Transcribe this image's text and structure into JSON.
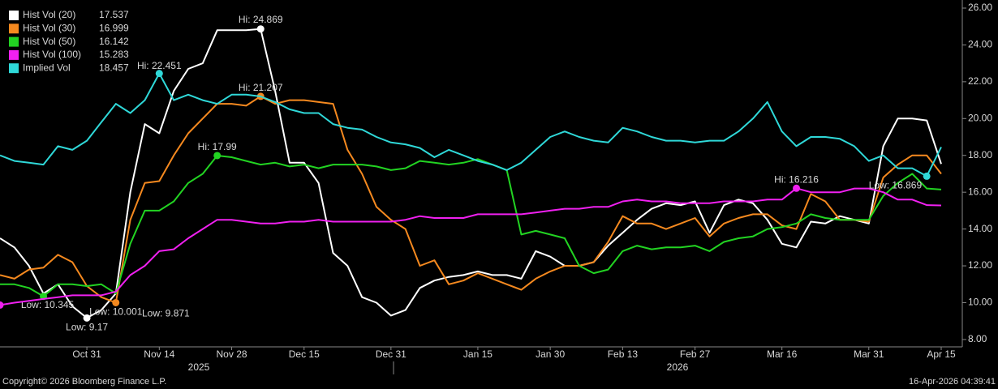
{
  "chart_data": {
    "type": "line",
    "categories": [
      null,
      null,
      null,
      null,
      null,
      null,
      "Oct 31",
      null,
      null,
      null,
      null,
      "Nov 14",
      null,
      null,
      null,
      null,
      "Nov 28",
      null,
      null,
      null,
      null,
      "Dec 15",
      null,
      null,
      null,
      null,
      null,
      "Dec 31",
      null,
      null,
      null,
      null,
      null,
      "Jan 15",
      null,
      null,
      null,
      null,
      "Jan 30",
      null,
      null,
      null,
      null,
      "Feb 13",
      null,
      null,
      null,
      null,
      "Feb 27",
      null,
      null,
      null,
      null,
      null,
      "Mar 16",
      null,
      null,
      null,
      null,
      null,
      "Mar 31",
      null,
      null,
      null,
      null,
      "Apr 15"
    ],
    "year_labels": [
      "2025",
      "2026"
    ],
    "ylim": [
      7.6,
      26.44
    ],
    "yticks": [
      {
        "value": 8,
        "label": "8.00"
      },
      {
        "value": 10,
        "label": "10.00"
      },
      {
        "value": 12,
        "label": "12.00"
      },
      {
        "value": 14,
        "label": "14.00"
      },
      {
        "value": 16,
        "label": "16.00"
      },
      {
        "value": 18,
        "label": "18.00"
      },
      {
        "value": 20,
        "label": "20.00"
      },
      {
        "value": 22,
        "label": "22.00"
      },
      {
        "value": 24,
        "label": "24.00"
      },
      {
        "value": 26,
        "label": "26.00"
      }
    ],
    "legend": "top-left",
    "series": [
      {
        "name": "Hist Vol (20)",
        "color": "#ffffff",
        "values": [
          13.5,
          13.0,
          12.0,
          10.5,
          11.0,
          9.8,
          9.17,
          9.6,
          10.5,
          16.0,
          19.7,
          19.2,
          21.5,
          22.7,
          23.0,
          24.8,
          24.8,
          24.8,
          24.869,
          21.5,
          17.6,
          17.6,
          16.5,
          12.7,
          12.0,
          10.3,
          10.0,
          9.3,
          9.6,
          10.8,
          11.2,
          11.4,
          11.5,
          11.7,
          11.5,
          11.5,
          11.3,
          12.8,
          12.5,
          12.0,
          12.0,
          12.2,
          13.1,
          13.8,
          14.5,
          15.1,
          15.4,
          15.3,
          15.5,
          13.8,
          15.3,
          15.6,
          15.4,
          14.5,
          13.2,
          13.0,
          14.4,
          14.3,
          14.7,
          14.5,
          14.3,
          18.5,
          20.0,
          20.0,
          19.9,
          17.537
        ],
        "annotations": [
          {
            "label": "Hi: 24.869",
            "extreme": "max"
          },
          {
            "label": "Low: 9.17",
            "extreme": "min"
          }
        ]
      },
      {
        "name": "Hist Vol (30)",
        "color": "#f5891f",
        "values": [
          11.5,
          11.3,
          11.8,
          11.9,
          12.6,
          12.2,
          10.9,
          10.3,
          10.001,
          14.5,
          16.5,
          16.6,
          18.0,
          19.2,
          20.0,
          20.8,
          20.8,
          20.7,
          21.207,
          20.8,
          21.0,
          21.0,
          20.9,
          20.8,
          18.3,
          17.0,
          15.2,
          14.5,
          14.0,
          12.0,
          12.3,
          11.0,
          11.2,
          11.6,
          11.3,
          11.0,
          10.7,
          11.3,
          11.7,
          12.0,
          12.0,
          12.2,
          13.3,
          14.7,
          14.3,
          14.3,
          14.0,
          14.3,
          14.6,
          13.6,
          14.3,
          14.6,
          14.8,
          14.8,
          14.2,
          14.0,
          15.9,
          15.5,
          14.5,
          14.5,
          14.4,
          16.8,
          17.5,
          18.0,
          18.0,
          16.999
        ],
        "annotations": [
          {
            "label": "Hi: 21.207",
            "extreme": "max"
          },
          {
            "label": "Low: 10.001",
            "extreme": "min"
          }
        ]
      },
      {
        "name": "Hist Vol (50)",
        "color": "#22d322",
        "values": [
          11.0,
          11.0,
          10.8,
          10.345,
          11.0,
          11.0,
          10.9,
          11.0,
          10.5,
          13.2,
          15.0,
          15.0,
          15.5,
          16.5,
          17.0,
          17.99,
          17.9,
          17.7,
          17.5,
          17.6,
          17.4,
          17.5,
          17.3,
          17.5,
          17.5,
          17.5,
          17.4,
          17.2,
          17.3,
          17.7,
          17.6,
          17.5,
          17.6,
          17.8,
          17.5,
          17.2,
          13.7,
          13.9,
          13.7,
          13.5,
          12.0,
          11.6,
          11.8,
          12.8,
          13.1,
          12.9,
          13.0,
          13.0,
          13.1,
          12.8,
          13.3,
          13.5,
          13.6,
          14.0,
          14.1,
          14.3,
          14.8,
          14.6,
          14.5,
          14.5,
          14.5,
          15.8,
          16.5,
          17.0,
          16.2,
          16.142
        ],
        "annotations": [
          {
            "label": "Hi: 17.99",
            "extreme": "max"
          },
          {
            "label": "Low: 10.345",
            "extreme": "min"
          }
        ]
      },
      {
        "name": "Hist Vol (100)",
        "color": "#f020f0",
        "values": [
          9.871,
          10.0,
          10.1,
          10.2,
          10.3,
          10.4,
          10.4,
          10.4,
          10.6,
          11.5,
          12.0,
          12.8,
          12.9,
          13.5,
          14.0,
          14.5,
          14.5,
          14.4,
          14.3,
          14.3,
          14.4,
          14.4,
          14.5,
          14.4,
          14.4,
          14.4,
          14.4,
          14.4,
          14.5,
          14.7,
          14.6,
          14.6,
          14.6,
          14.8,
          14.8,
          14.8,
          14.8,
          14.9,
          15.0,
          15.1,
          15.1,
          15.2,
          15.2,
          15.5,
          15.6,
          15.5,
          15.5,
          15.4,
          15.4,
          15.4,
          15.5,
          15.5,
          15.5,
          15.6,
          15.6,
          16.216,
          16.0,
          16.0,
          16.0,
          16.2,
          16.2,
          16.0,
          15.6,
          15.6,
          15.3,
          15.283
        ],
        "annotations": [
          {
            "label": "Hi: 16.216",
            "extreme": "max"
          },
          {
            "label": "Low: 9.871",
            "extreme": "min"
          }
        ]
      },
      {
        "name": "Implied Vol",
        "color": "#2fd8d8",
        "values": [
          18.0,
          17.7,
          17.6,
          17.5,
          18.5,
          18.3,
          18.8,
          19.8,
          20.8,
          20.3,
          21.0,
          22.451,
          21.0,
          21.3,
          21.0,
          20.8,
          21.3,
          21.3,
          21.2,
          20.9,
          20.5,
          20.3,
          20.3,
          19.7,
          19.5,
          19.4,
          19.0,
          18.7,
          18.6,
          18.4,
          17.9,
          18.3,
          18.0,
          17.7,
          17.5,
          17.2,
          17.6,
          18.3,
          19.0,
          19.3,
          19.0,
          18.8,
          18.7,
          19.5,
          19.3,
          19.0,
          18.8,
          18.8,
          18.7,
          18.8,
          18.8,
          19.3,
          20.0,
          20.9,
          19.3,
          18.5,
          19.0,
          19.0,
          18.9,
          18.5,
          17.7,
          18.0,
          17.3,
          17.3,
          16.869,
          18.457
        ],
        "annotations": [
          {
            "label": "Hi: 22.451",
            "extreme": "max"
          },
          {
            "label": "Low: 16.869",
            "extreme": "min"
          }
        ]
      }
    ],
    "footer": {
      "copyright": "Copyright© 2026 Bloomberg Finance L.P.",
      "timestamp": "16-Apr-2026 04:39:41"
    }
  }
}
